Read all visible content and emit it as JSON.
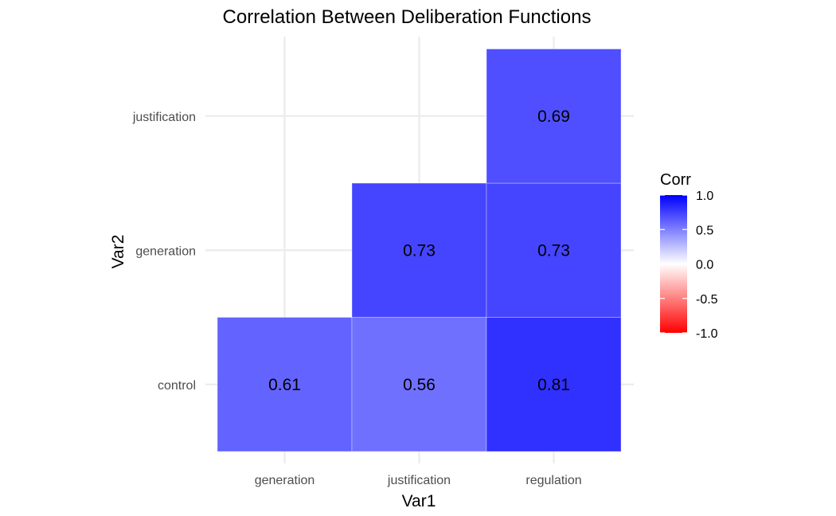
{
  "chart_data": {
    "type": "heatmap",
    "title": "Correlation Between Deliberation Functions",
    "xlabel": "Var1",
    "ylabel": "Var2",
    "x_categories": [
      "generation",
      "justification",
      "regulation"
    ],
    "y_categories": [
      "control",
      "generation",
      "justification"
    ],
    "cells": [
      {
        "x": "generation",
        "y": "control",
        "value": 0.61,
        "label": "0.61"
      },
      {
        "x": "justification",
        "y": "control",
        "value": 0.56,
        "label": "0.56"
      },
      {
        "x": "regulation",
        "y": "control",
        "value": 0.81,
        "label": "0.81"
      },
      {
        "x": "justification",
        "y": "generation",
        "value": 0.73,
        "label": "0.73"
      },
      {
        "x": "regulation",
        "y": "generation",
        "value": 0.73,
        "label": "0.73"
      },
      {
        "x": "regulation",
        "y": "justification",
        "value": 0.69,
        "label": "0.69"
      }
    ],
    "legend": {
      "title": "Corr",
      "limits": [
        -1.0,
        1.0
      ],
      "ticks": [
        1.0,
        0.5,
        0.0,
        -0.5,
        -1.0
      ],
      "tick_labels": [
        "1.0",
        "0.5",
        "0.0",
        "-0.5",
        "-1.0"
      ],
      "low_color": "#ff0000",
      "mid_color": "#ffffff",
      "high_color": "#0000ff",
      "placement": "right"
    },
    "grid": true
  }
}
